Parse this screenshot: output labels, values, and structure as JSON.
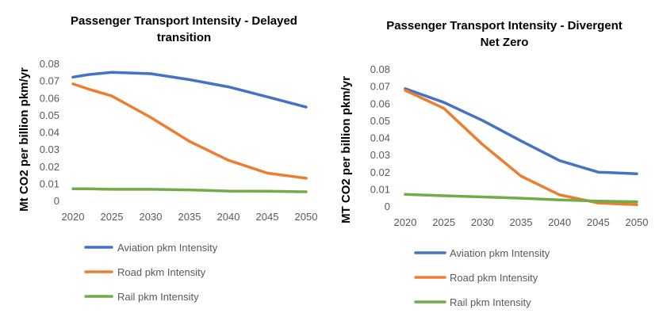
{
  "chart_data": [
    {
      "type": "line",
      "title_lines": [
        "Passenger Transport Intensity - Delayed",
        "transition"
      ],
      "ylabel": "Mt CO2 per billion pkm/yr",
      "xlabel": "",
      "ylim": [
        0,
        0.08
      ],
      "y_ticks": [
        "0",
        "0.01",
        "0.02",
        "0.03",
        "0.04",
        "0.05",
        "0.06",
        "0.07",
        "0.08"
      ],
      "x_ticks": [
        "2020",
        "2025",
        "2030",
        "2035",
        "2040",
        "2045",
        "2050"
      ],
      "x": [
        2020,
        2022,
        2025,
        2030,
        2035,
        2040,
        2045,
        2050
      ],
      "grid": false,
      "legend_position": "bottom",
      "series": [
        {
          "name": "Aviation pkm Intensity",
          "color": "#4472C4",
          "values": [
            0.072,
            0.0735,
            0.0748,
            0.074,
            0.0705,
            0.0663,
            0.0605,
            0.0545
          ]
        },
        {
          "name": "Road pkm Intensity",
          "color": "#ED7D31",
          "values": [
            0.068,
            0.065,
            0.061,
            0.0485,
            0.0345,
            0.0235,
            0.016,
            0.013
          ]
        },
        {
          "name": "Rail pkm Intensity",
          "color": "#70AD47",
          "values": [
            0.0068,
            0.0068,
            0.0065,
            0.0065,
            0.0062,
            0.0055,
            0.0054,
            0.0051
          ]
        }
      ]
    },
    {
      "type": "line",
      "title_lines": [
        "Passenger Transport Intensity - Divergent",
        "Net Zero"
      ],
      "ylabel": "MT CO2 per billion pkm/yr",
      "xlabel": "",
      "ylim": [
        0,
        0.08
      ],
      "y_ticks": [
        "0",
        "0.01",
        "0.02",
        "0.03",
        "0.04",
        "0.05",
        "0.06",
        "0.07",
        "0.08"
      ],
      "x_ticks": [
        "2020",
        "2025",
        "2030",
        "2035",
        "2040",
        "2045",
        "2050"
      ],
      "x": [
        2020,
        2025,
        2030,
        2035,
        2040,
        2045,
        2050
      ],
      "grid": false,
      "legend_position": "bottom",
      "series": [
        {
          "name": "Aviation pkm Intensity",
          "color": "#4472C4",
          "values": [
            0.0685,
            0.0605,
            0.05,
            0.038,
            0.0265,
            0.0198,
            0.0188
          ]
        },
        {
          "name": "Road pkm Intensity",
          "color": "#ED7D31",
          "values": [
            0.0675,
            0.057,
            0.036,
            0.0175,
            0.0065,
            0.0018,
            0.0008
          ]
        },
        {
          "name": "Rail pkm Intensity",
          "color": "#70AD47",
          "values": [
            0.0068,
            0.006,
            0.0053,
            0.0046,
            0.0036,
            0.0029,
            0.0025
          ]
        }
      ]
    }
  ]
}
